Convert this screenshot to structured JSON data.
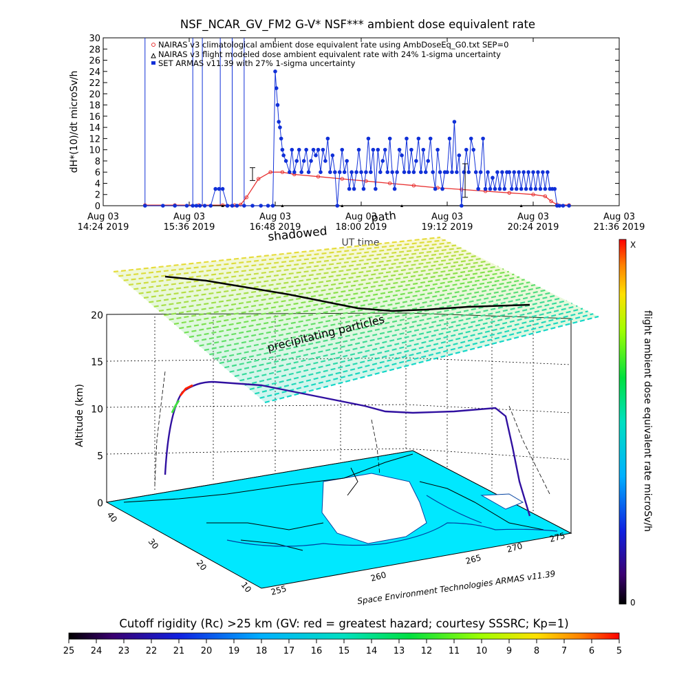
{
  "chart_data": [
    {
      "type": "line",
      "title": "NSF_NCAR_GV_FM2 G-V* NSF*** ambient dose equivalent rate",
      "ylabel": "dH*(10)/dt microSv/h",
      "xlabel": "UT time",
      "ylim": [
        0,
        30
      ],
      "y_ticks": [
        "0",
        "2",
        "4",
        "6",
        "8",
        "10",
        "12",
        "14",
        "16",
        "18",
        "20",
        "22",
        "24",
        "26",
        "28",
        "30"
      ],
      "x_ticks": [
        {
          "t": 0,
          "line1": "Aug 03",
          "line2": "14:24 2019"
        },
        {
          "t": 72,
          "line1": "Aug 03",
          "line2": "15:36 2019"
        },
        {
          "t": 144,
          "line1": "Aug 03",
          "line2": "16:48 2019"
        },
        {
          "t": 216,
          "line1": "Aug 03",
          "line2": "18:00 2019"
        },
        {
          "t": 288,
          "line1": "Aug 03",
          "line2": "19:12 2019"
        },
        {
          "t": 360,
          "line1": "Aug 03",
          "line2": "20:24 2019"
        },
        {
          "t": 432,
          "line1": "Aug 03",
          "line2": "21:36 2019"
        }
      ],
      "overlay_labels": {
        "path": "path",
        "shadowed": "shadowed"
      },
      "legend": [
        "NAIRAS v3 climatological ambient dose equivalent rate using AmbDoseEq_G0.txt SEP=0",
        "NAIRAS v3 flight modeled dose ambient equivalent rate with 24% 1-sigma uncertainty",
        "SET ARMAS v11.39 with 27% 1-sigma uncertainty"
      ],
      "series": [
        {
          "name": "NAIRAS v3 climatological ambient dose equivalent rate using AmbDoseEq_G0.txt SEP=0",
          "color": "#e83030",
          "x": [
            35,
            60,
            80,
            100,
            110,
            115,
            120,
            130,
            140,
            150,
            160,
            180,
            200,
            220,
            240,
            260,
            280,
            300,
            320,
            340,
            360,
            370,
            375,
            380,
            390
          ],
          "y": [
            0.1,
            0.1,
            0.1,
            0.1,
            0.1,
            0.2,
            1.5,
            4.8,
            6.0,
            6.0,
            5.6,
            5.2,
            4.8,
            4.4,
            4.0,
            3.6,
            3.2,
            2.9,
            2.6,
            2.3,
            2.0,
            1.7,
            0.8,
            0.2,
            0.1
          ]
        },
        {
          "name": "NAIRAS v3 flight modeled dose ambient equivalent rate with 24% 1-sigma uncertainty",
          "color": "#000000",
          "x": [
            35,
            100,
            150,
            200,
            250,
            300,
            350,
            390
          ],
          "y": [
            0,
            0,
            0,
            0,
            0,
            0,
            0,
            0
          ]
        },
        {
          "name": "SET ARMAS v11.39 with 27% 1-sigma uncertainty",
          "color": "#1030d8",
          "x": [
            35,
            50,
            60,
            70,
            75,
            78,
            81,
            85,
            90,
            94,
            97,
            100,
            104,
            108,
            112,
            118,
            125,
            132,
            138,
            142,
            144,
            145,
            146,
            147,
            148,
            149,
            150,
            151,
            153,
            156,
            158,
            160,
            162,
            164,
            166,
            168,
            170,
            172,
            174,
            176,
            178,
            180,
            182,
            184,
            186,
            188,
            190,
            192,
            194,
            196,
            198,
            200,
            202,
            204,
            206,
            208,
            210,
            212,
            214,
            216,
            218,
            220,
            222,
            224,
            226,
            228,
            230,
            232,
            234,
            236,
            238,
            240,
            242,
            244,
            246,
            248,
            250,
            252,
            254,
            256,
            258,
            260,
            262,
            264,
            266,
            268,
            270,
            272,
            274,
            276,
            278,
            280,
            282,
            284,
            286,
            288,
            290,
            292,
            294,
            296,
            298,
            300,
            302,
            304,
            306,
            308,
            310,
            312,
            314,
            316,
            318,
            320,
            322,
            324,
            326,
            328,
            330,
            332,
            334,
            336,
            338,
            340,
            342,
            344,
            346,
            348,
            350,
            352,
            354,
            356,
            358,
            360,
            362,
            364,
            366,
            368,
            370,
            372,
            374,
            376,
            378,
            380,
            382,
            385,
            390
          ],
          "y": [
            0,
            0,
            0,
            0,
            0,
            0,
            0,
            0,
            0,
            3,
            3,
            3,
            0,
            0,
            0,
            0,
            0,
            0,
            0,
            0,
            24,
            21,
            18,
            15,
            14,
            12,
            10,
            9,
            8,
            6,
            10,
            6,
            8,
            10,
            6,
            8,
            10,
            6,
            8,
            10,
            9,
            10,
            6,
            10,
            8,
            12,
            6,
            9,
            6,
            0,
            6,
            10,
            6,
            8,
            3,
            6,
            3,
            6,
            10,
            6,
            3,
            6,
            12,
            6,
            10,
            3,
            10,
            6,
            8,
            10,
            6,
            12,
            6,
            3,
            6,
            10,
            9,
            6,
            12,
            6,
            10,
            6,
            8,
            12,
            6,
            10,
            6,
            8,
            12,
            6,
            3,
            10,
            6,
            3,
            6,
            6,
            12,
            6,
            15,
            6,
            9,
            0,
            6,
            10,
            6,
            12,
            10,
            6,
            3,
            6,
            12,
            3,
            6,
            3,
            5,
            3,
            6,
            3,
            6,
            3,
            6,
            6,
            3,
            6,
            3,
            6,
            3,
            6,
            3,
            6,
            3,
            6,
            3,
            6,
            3,
            6,
            3,
            6,
            3,
            3,
            3,
            0,
            0,
            0,
            0
          ]
        }
      ]
    },
    {
      "type": "heatmap",
      "ylabel": "Altitude (km)",
      "z_ticks": [
        "0",
        "5",
        "10",
        "15",
        "20"
      ],
      "lat_ticks": [
        "40",
        "30",
        "20",
        "10"
      ],
      "lon_ticks": [
        "255",
        "260",
        "265",
        "270",
        "275"
      ],
      "annotations": [
        "precipitating particles"
      ],
      "credit": "Space Environment Technologies ARMAS v11.39",
      "colorbar": {
        "label": "flight ambient dose equivalent rate microSv/h",
        "top_label": "X",
        "bottom_label": "0"
      }
    },
    {
      "type": "heatmap",
      "title": "Cutoff rigidity (Rc) >25 km (GV: red = greatest hazard; courtesy SSSRC; Kp=1)",
      "ticks": [
        "25",
        "24",
        "23",
        "22",
        "21",
        "20",
        "19",
        "18",
        "17",
        "16",
        "15",
        "14",
        "13",
        "12",
        "11",
        "10",
        "9",
        "8",
        "7",
        "6",
        "5"
      ]
    }
  ],
  "colors": {
    "nairas_clim": "#e83030",
    "armas": "#1030d8",
    "ocean": "#00e8ff",
    "land": "#ffffff"
  }
}
